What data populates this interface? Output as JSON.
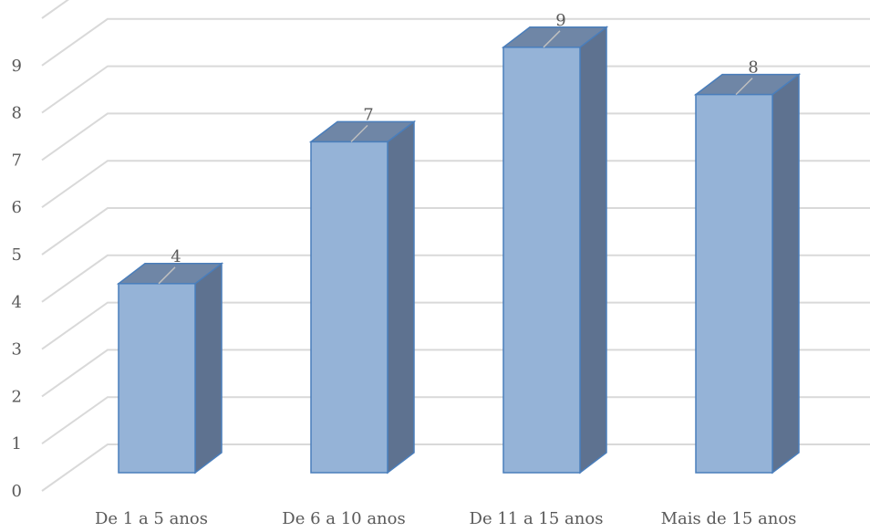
{
  "chart_data": {
    "type": "bar",
    "title": "",
    "xlabel": "",
    "ylabel": "",
    "categories": [
      "De 1 a 5 anos",
      "De 6 a 10 anos",
      "De 11 a 15 anos",
      "Mais de 15 anos"
    ],
    "values": [
      4,
      7,
      9,
      8
    ],
    "data_labels": [
      "4",
      "7",
      "9",
      "8"
    ],
    "ylim": [
      0,
      10
    ],
    "y_ticks": [
      "0",
      "1",
      "2",
      "3",
      "4",
      "5",
      "6",
      "7",
      "8",
      "9"
    ],
    "grid": true,
    "legend": "none",
    "style": "3d-column",
    "colors": {
      "bar_front": "#95B3D7",
      "bar_side": "#5E7290",
      "bar_top": "#6F86A6",
      "bar_edge": "#4A7EBB",
      "grid": "#D9D9D9",
      "text": "#595959"
    }
  }
}
